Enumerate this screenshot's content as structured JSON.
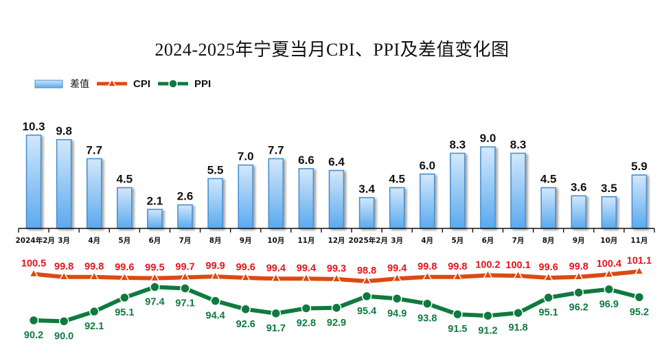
{
  "chart_data": {
    "type": "bar",
    "title": "2024-2025年宁夏当月CPI、PPI及差值变化图",
    "categories": [
      "2024年2月",
      "3月",
      "4月",
      "5月",
      "6月",
      "7月",
      "8月",
      "9月",
      "10月",
      "11月",
      "12月",
      "2025年2月",
      "3月",
      "4月",
      "5月",
      "6月",
      "7月",
      "8月",
      "9月",
      "10月",
      "11月"
    ],
    "series": [
      {
        "name": "差值",
        "type": "bar",
        "color": "#5aa9ee",
        "values": [
          10.3,
          9.8,
          7.7,
          4.5,
          2.1,
          2.6,
          5.5,
          7.0,
          7.7,
          6.6,
          6.4,
          3.4,
          4.5,
          6.0,
          8.3,
          9.0,
          8.3,
          4.5,
          3.6,
          3.5,
          5.9
        ]
      },
      {
        "name": "CPI",
        "type": "line",
        "color": "#db4a12",
        "label_color": "#e2141c",
        "marker": "triangle",
        "values": [
          100.5,
          99.8,
          99.8,
          99.6,
          99.5,
          99.7,
          99.9,
          99.6,
          99.4,
          99.4,
          99.3,
          98.8,
          99.4,
          99.8,
          99.8,
          100.2,
          100.1,
          99.6,
          99.8,
          100.4,
          101.1
        ]
      },
      {
        "name": "PPI",
        "type": "line",
        "color": "#0f7a3e",
        "label_color": "#0f7a3e",
        "marker": "circle",
        "values": [
          90.2,
          90.0,
          92.1,
          95.1,
          97.4,
          97.1,
          94.4,
          92.6,
          91.7,
          92.8,
          92.9,
          95.4,
          94.9,
          93.8,
          91.5,
          91.2,
          91.8,
          95.1,
          96.2,
          96.9,
          95.2
        ]
      }
    ],
    "value_labels": {
      "bar": [
        "10.3",
        "9.8",
        "7.7",
        "4.5",
        "2.1",
        "2.6",
        "5.5",
        "7.0",
        "7.7",
        "6.6",
        "6.4",
        "3.4",
        "4.5",
        "6.0",
        "8.3",
        "9.0",
        "8.3",
        "4.5",
        "3.6",
        "3.5",
        "5.9"
      ],
      "cpi": [
        "100.5",
        "99.8",
        "99.8",
        "99.6",
        "99.5",
        "99.7",
        "99.9",
        "99.6",
        "99.4",
        "99.4",
        "99.3",
        "98.8",
        "99.4",
        "99.8",
        "99.8",
        "100.2",
        "100.1",
        "99.6",
        "99.8",
        "100.4",
        "101.1"
      ],
      "ppi": [
        "90.2",
        "90.0",
        "92.1",
        "95.1",
        "97.4",
        "97.1",
        "94.4",
        "92.6",
        "91.7",
        "92.8",
        "92.9",
        "95.4",
        "94.9",
        "93.8",
        "91.5",
        "91.2",
        "91.8",
        "95.1",
        "96.2",
        "96.9",
        "95.2"
      ]
    },
    "legend": {
      "position": "top-left",
      "entries": [
        "差值",
        "CPI",
        "PPI"
      ]
    },
    "grid": false,
    "xlabel": "",
    "ylabel": ""
  }
}
